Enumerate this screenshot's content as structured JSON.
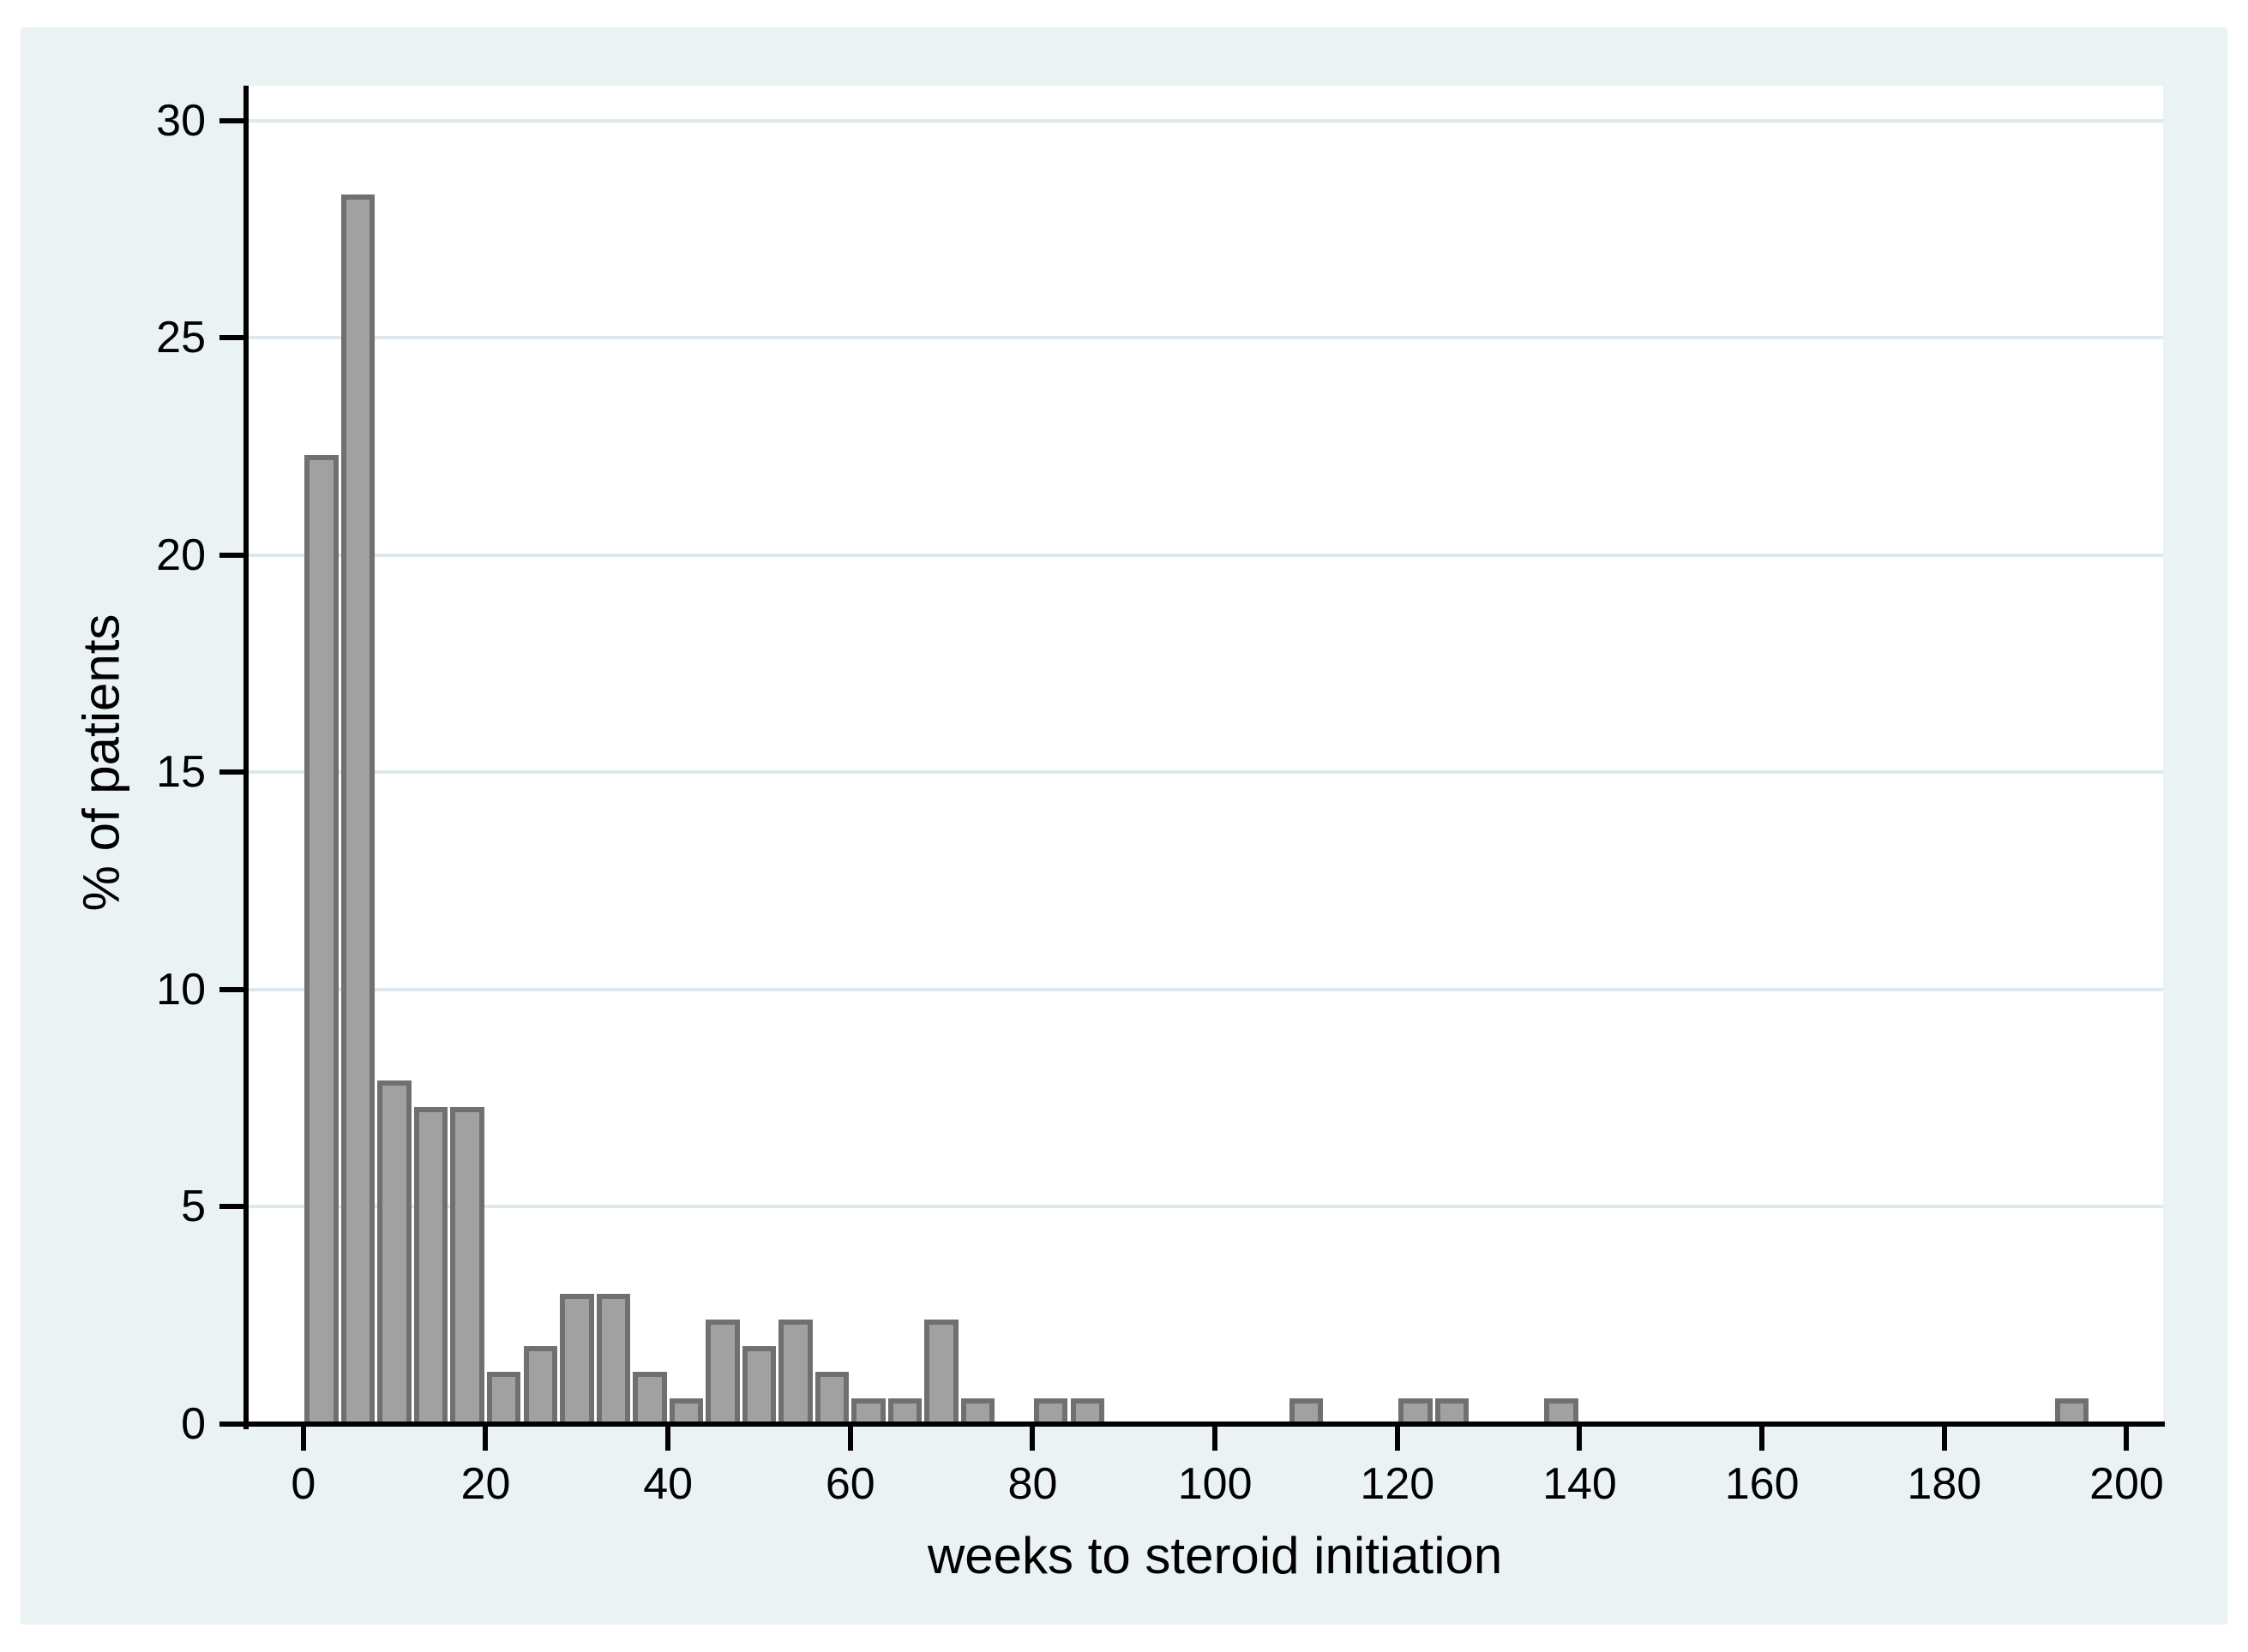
{
  "figure": {
    "page_background": "#ffffff",
    "region_background": "#EAF2F3",
    "plot_background": "#ffffff",
    "grid_color": "#DEE9ED",
    "axis_color": "#000000",
    "bar_fill": "#A1A1A1",
    "bar_border": "#707070",
    "text_color": "#000000"
  },
  "chart_data": {
    "type": "bar",
    "subtype": "histogram",
    "title": "",
    "xlabel": "weeks to steroid initiation",
    "ylabel": "% of patients",
    "legend": "none",
    "grid": "horizontal",
    "bin_width_weeks": 4,
    "x_ticks": [
      0,
      20,
      40,
      60,
      80,
      100,
      120,
      140,
      160,
      180,
      200
    ],
    "y_ticks": [
      0,
      5,
      10,
      15,
      20,
      25,
      30
    ],
    "xlim": [
      -6,
      204
    ],
    "ylim": [
      0,
      30.8
    ],
    "bars": [
      {
        "start": 0,
        "end": 4,
        "value": 22.3
      },
      {
        "start": 4,
        "end": 8,
        "value": 28.3
      },
      {
        "start": 8,
        "end": 12,
        "value": 7.9
      },
      {
        "start": 12,
        "end": 16,
        "value": 7.3
      },
      {
        "start": 16,
        "end": 20,
        "value": 7.3
      },
      {
        "start": 20,
        "end": 24,
        "value": 1.2
      },
      {
        "start": 24,
        "end": 28,
        "value": 1.8
      },
      {
        "start": 28,
        "end": 32,
        "value": 3.0
      },
      {
        "start": 32,
        "end": 36,
        "value": 3.0
      },
      {
        "start": 36,
        "end": 40,
        "value": 1.2
      },
      {
        "start": 40,
        "end": 44,
        "value": 0.6
      },
      {
        "start": 44,
        "end": 48,
        "value": 2.4
      },
      {
        "start": 48,
        "end": 52,
        "value": 1.8
      },
      {
        "start": 52,
        "end": 56,
        "value": 2.4
      },
      {
        "start": 56,
        "end": 60,
        "value": 1.2
      },
      {
        "start": 60,
        "end": 64,
        "value": 0.6
      },
      {
        "start": 64,
        "end": 68,
        "value": 0.6
      },
      {
        "start": 68,
        "end": 72,
        "value": 2.4
      },
      {
        "start": 72,
        "end": 76,
        "value": 0.6
      },
      {
        "start": 80,
        "end": 84,
        "value": 0.6
      },
      {
        "start": 84,
        "end": 88,
        "value": 0.6
      },
      {
        "start": 108,
        "end": 112,
        "value": 0.6
      },
      {
        "start": 120,
        "end": 124,
        "value": 0.6
      },
      {
        "start": 124,
        "end": 128,
        "value": 0.6
      },
      {
        "start": 136,
        "end": 140,
        "value": 0.6
      },
      {
        "start": 192,
        "end": 196,
        "value": 0.6
      }
    ]
  }
}
